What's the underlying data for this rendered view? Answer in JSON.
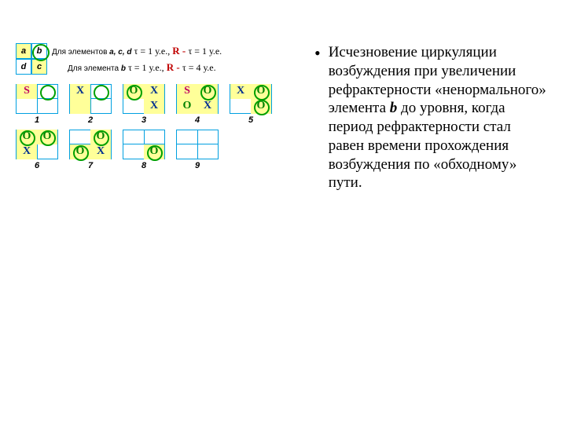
{
  "header": {
    "cells": [
      "a",
      "b",
      "d",
      "c"
    ],
    "line1_prefix": "Для элементов ",
    "line1_elems": "a, c, d",
    "tau_eq": " τ = 1 у.е., ",
    "r_label": "R - ",
    "r_tau1": "τ = 1 у.е.",
    "line2_prefix": "Для элемента ",
    "line2_elem": "b",
    "r_tau2": "τ = 4 у.е."
  },
  "panels_top": [
    {
      "n": "1",
      "tl": "S",
      "tr": "",
      "bl": "",
      "br": "",
      "y": [
        "tl"
      ],
      "circ": [
        "tr"
      ]
    },
    {
      "n": "2",
      "tl": "X",
      "tr": "",
      "bl": "",
      "br": "",
      "y": [
        "tl",
        "bl"
      ],
      "circ": [
        "tr"
      ]
    },
    {
      "n": "3",
      "tl": "O",
      "tr": "X",
      "bl": "",
      "br": "X",
      "y": [
        "tl",
        "tr",
        "br"
      ],
      "circ": [
        "tl"
      ]
    },
    {
      "n": "4",
      "tl": "S",
      "tr": "O",
      "bl": "O",
      "br": "X",
      "y": [
        "tl",
        "tr",
        "bl",
        "br"
      ],
      "circ": [
        "tr"
      ]
    },
    {
      "n": "5",
      "tl": "X",
      "tr": "O",
      "bl": "",
      "br": "O",
      "y": [
        "tl",
        "tr",
        "br"
      ],
      "circ": [
        "tr",
        "br"
      ]
    }
  ],
  "panels_bot": [
    {
      "n": "6",
      "tl": "O",
      "tr": "O",
      "bl": "X",
      "br": "",
      "y": [
        "tl",
        "tr",
        "bl"
      ],
      "circ": [
        "tl",
        "tr"
      ]
    },
    {
      "n": "7",
      "tl": "",
      "tr": "O",
      "bl": "O",
      "br": "X",
      "y": [
        "tr",
        "bl",
        "br"
      ],
      "circ": [
        "tr",
        "bl"
      ]
    },
    {
      "n": "8",
      "tl": "",
      "tr": "",
      "bl": "",
      "br": "O",
      "y": [
        "br"
      ],
      "circ": [
        "br"
      ]
    },
    {
      "n": "9",
      "tl": "",
      "tr": "",
      "bl": "",
      "br": "",
      "y": [],
      "circ": []
    }
  ],
  "text": {
    "bullet": "Исчезновение циркуляции возбуждения при увеличении рефрактерности «ненормального» элемента ",
    "bold": "b",
    "rest": " до уровня, когда период рефрактерности стал равен времени прохождения возбуждения по «обходному» пути."
  },
  "colors": {
    "grid": "#00a0e0",
    "yellow": "#ffff99",
    "green": "#00a000",
    "S": "#c00060",
    "X": "#003090",
    "O": "#008000",
    "R": "#c00000"
  }
}
